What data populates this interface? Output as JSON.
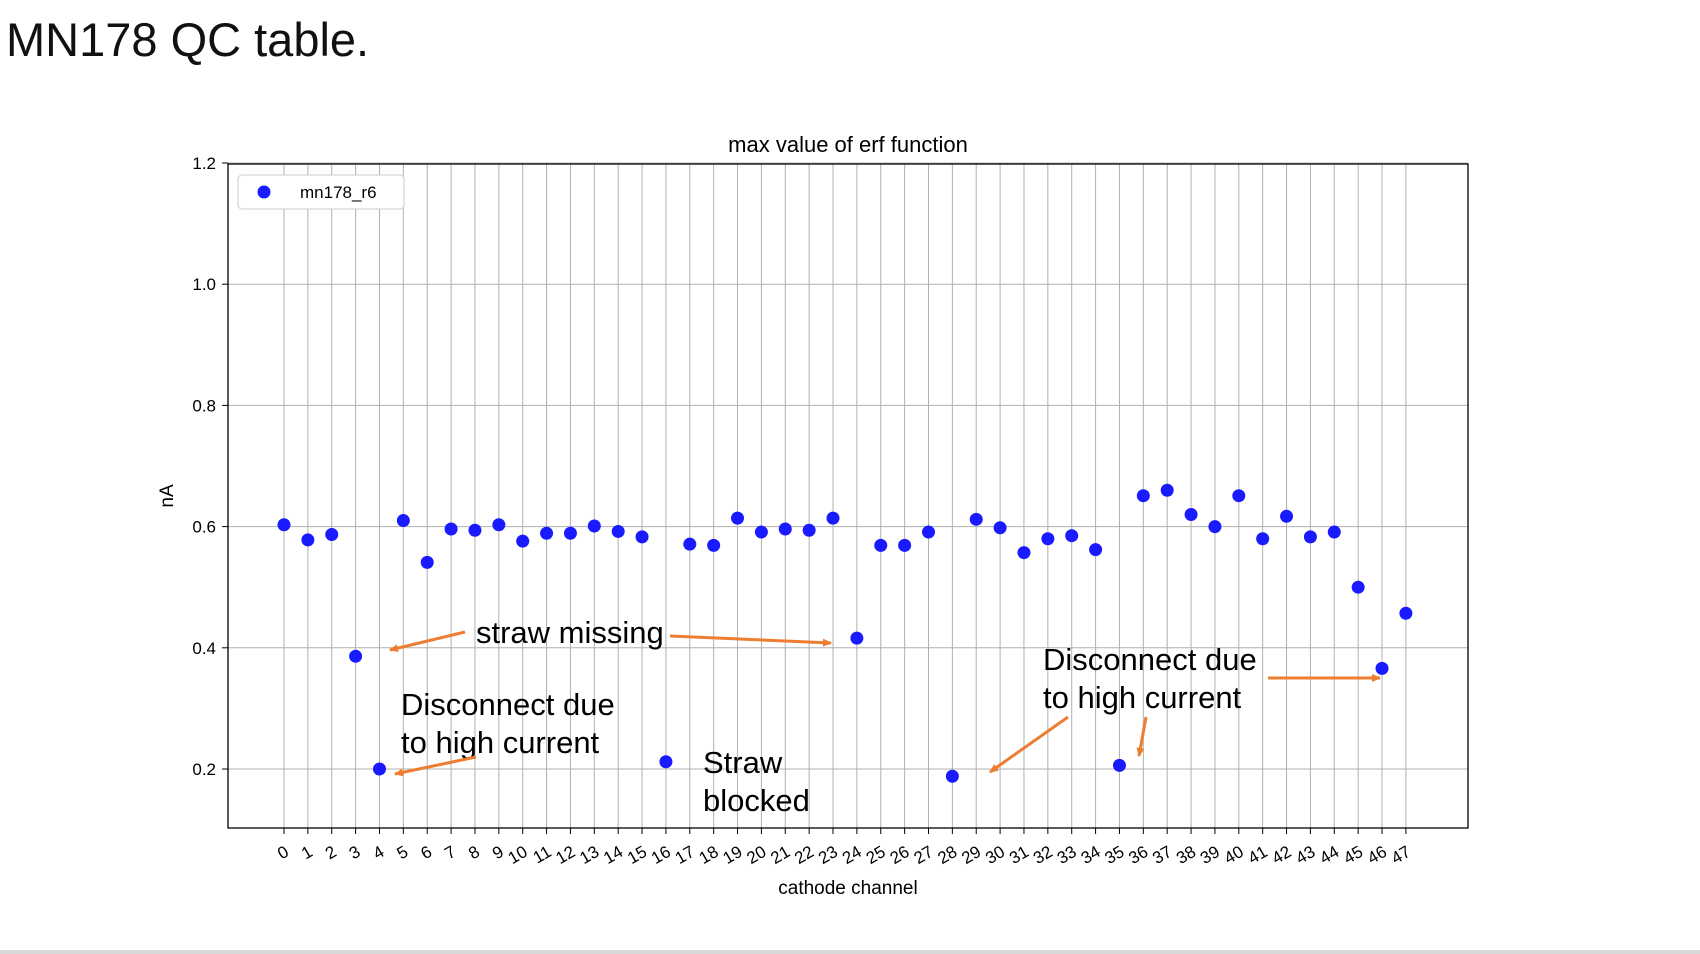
{
  "slide_title": "MN178 QC table.",
  "chart_data": {
    "type": "scatter",
    "title": "max value of erf function",
    "xlabel": "cathode channel",
    "ylabel": "nA",
    "ylim": [
      0.1,
      1.2
    ],
    "yticks": [
      0.2,
      0.4,
      0.6,
      0.8,
      1.0,
      1.2
    ],
    "ytick_labels": [
      "0.2",
      "0.4",
      "0.6",
      "0.8",
      "1.0",
      "1.2"
    ],
    "xticks": [
      0,
      1,
      2,
      3,
      4,
      5,
      6,
      7,
      8,
      9,
      10,
      11,
      12,
      13,
      14,
      15,
      16,
      17,
      18,
      19,
      20,
      21,
      22,
      23,
      24,
      25,
      26,
      27,
      28,
      29,
      30,
      31,
      32,
      33,
      34,
      35,
      36,
      37,
      38,
      39,
      40,
      41,
      42,
      43,
      44,
      45,
      46,
      47
    ],
    "grid": true,
    "legend_position": "top-left",
    "series": [
      {
        "name": "mn178_r6",
        "color": "#1a1aff",
        "points": [
          [
            0,
            0.603
          ],
          [
            1,
            0.578
          ],
          [
            2,
            0.587
          ],
          [
            3,
            0.386
          ],
          [
            4,
            0.2
          ],
          [
            5,
            0.61
          ],
          [
            6,
            0.541
          ],
          [
            7,
            0.596
          ],
          [
            8,
            0.594
          ],
          [
            9,
            0.603
          ],
          [
            10,
            0.576
          ],
          [
            11,
            0.589
          ],
          [
            12,
            0.589
          ],
          [
            13,
            0.601
          ],
          [
            14,
            0.592
          ],
          [
            15,
            0.583
          ],
          [
            16,
            0.212
          ],
          [
            17,
            0.571
          ],
          [
            18,
            0.569
          ],
          [
            19,
            0.614
          ],
          [
            20,
            0.591
          ],
          [
            21,
            0.596
          ],
          [
            22,
            0.594
          ],
          [
            23,
            0.614
          ],
          [
            24,
            0.416
          ],
          [
            25,
            0.569
          ],
          [
            26,
            0.569
          ],
          [
            27,
            0.591
          ],
          [
            28,
            0.188
          ],
          [
            29,
            0.612
          ],
          [
            30,
            0.598
          ],
          [
            31,
            0.557
          ],
          [
            32,
            0.58
          ],
          [
            33,
            0.585
          ],
          [
            34,
            0.562
          ],
          [
            35,
            0.206
          ],
          [
            36,
            0.651
          ],
          [
            37,
            0.66
          ],
          [
            38,
            0.62
          ],
          [
            39,
            0.6
          ],
          [
            40,
            0.651
          ],
          [
            41,
            0.58
          ],
          [
            42,
            0.617
          ],
          [
            43,
            0.583
          ],
          [
            44,
            0.591
          ],
          [
            45,
            0.5
          ],
          [
            46,
            0.366
          ],
          [
            47,
            0.457
          ]
        ]
      }
    ],
    "annotations": [
      {
        "lines": [
          "straw missing"
        ]
      },
      {
        "lines": [
          "Disconnect due",
          "to high current"
        ]
      },
      {
        "lines": [
          "Straw",
          "blocked"
        ]
      },
      {
        "lines": [
          "Disconnect due",
          "to high current"
        ]
      }
    ],
    "annotation_color": "#ed7d31"
  }
}
